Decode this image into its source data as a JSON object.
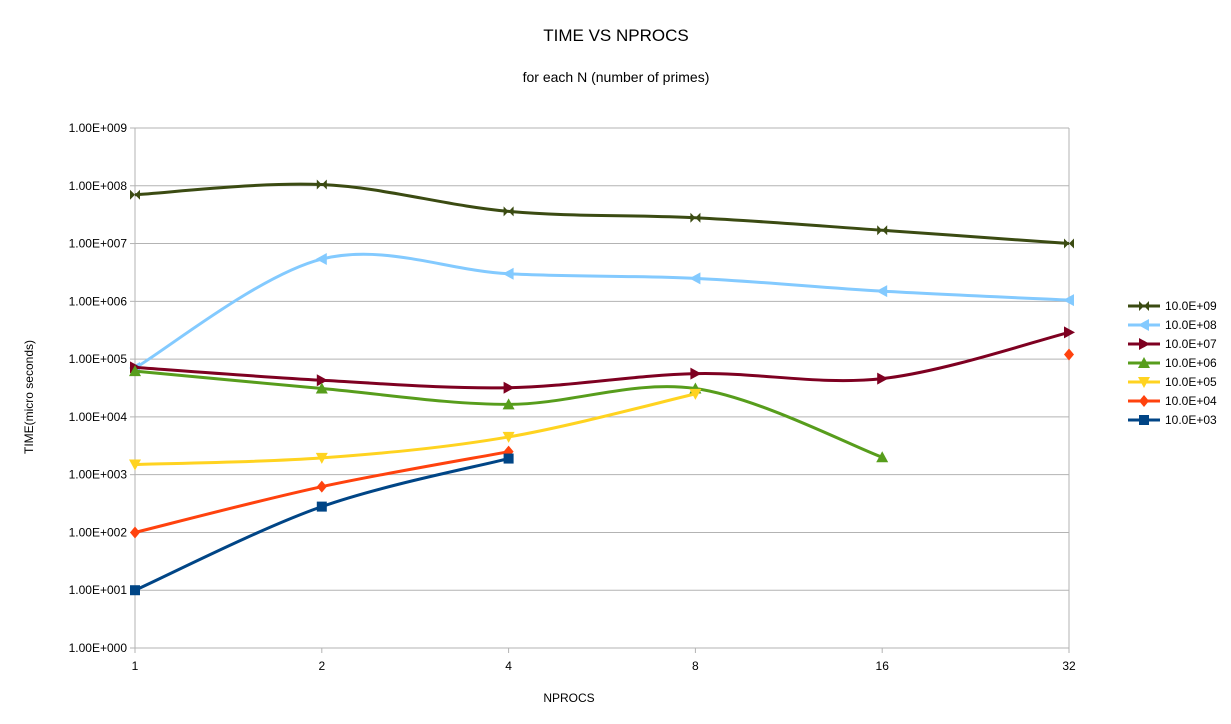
{
  "chart_data": {
    "type": "line",
    "title": "TIME VS NPROCS",
    "subtitle": "for each N (number of primes)",
    "xlabel": "NPROCS",
    "ylabel": "TIME(micro seconds)",
    "x_scale": "log2",
    "y_scale": "log10",
    "xlim": [
      1,
      32
    ],
    "ylim": [
      1,
      1000000000
    ],
    "x_ticks": [
      "1",
      "2",
      "4",
      "8",
      "16",
      "32"
    ],
    "y_ticks": [
      "1.00E+000",
      "1.00E+001",
      "1.00E+002",
      "1.00E+003",
      "1.00E+004",
      "1.00E+005",
      "1.00E+006",
      "1.00E+007",
      "1.00E+008",
      "1.00E+009"
    ],
    "grid": true,
    "legend_position": "right",
    "smoothed": true,
    "series": [
      {
        "name": "10.0E+09",
        "color": "#3b4b12",
        "marker": "bowtie",
        "points": [
          [
            1,
            70000000
          ],
          [
            2,
            105000000
          ],
          [
            4,
            36000000
          ],
          [
            8,
            28000000
          ],
          [
            16,
            17000000
          ],
          [
            32,
            10000000
          ]
        ]
      },
      {
        "name": "10.0E+08",
        "color": "#83caff",
        "marker": "triangle-left",
        "points": [
          [
            1,
            70000
          ],
          [
            2,
            5400000
          ],
          [
            4,
            3000000
          ],
          [
            8,
            2500000
          ],
          [
            16,
            1500000
          ],
          [
            32,
            1050000
          ]
        ]
      },
      {
        "name": "10.0E+07",
        "color": "#7e0021",
        "marker": "triangle-right",
        "points": [
          [
            1,
            72000
          ],
          [
            2,
            43000
          ],
          [
            4,
            32000
          ],
          [
            8,
            56000
          ],
          [
            16,
            46000
          ],
          [
            32,
            290000
          ]
        ]
      },
      {
        "name": "10.0E+06",
        "color": "#579d1c",
        "marker": "triangle-up",
        "points": [
          [
            1,
            62000
          ],
          [
            2,
            31000
          ],
          [
            4,
            16500
          ],
          [
            8,
            31000
          ],
          [
            16,
            2000
          ]
        ]
      },
      {
        "name": "10.0E+05",
        "color": "#ffd320",
        "marker": "triangle-down",
        "points": [
          [
            1,
            1500
          ],
          [
            2,
            1950
          ],
          [
            4,
            4500
          ],
          [
            8,
            25000
          ]
        ]
      },
      {
        "name": "10.0E+04",
        "color": "#ff420e",
        "marker": "diamond",
        "points": [
          [
            1,
            100
          ],
          [
            2,
            620
          ],
          [
            4,
            2500
          ],
          [
            32,
            120000
          ]
        ],
        "connected_through_index": 2
      },
      {
        "name": "10.0E+03",
        "color": "#004586",
        "marker": "square",
        "points": [
          [
            1,
            10
          ],
          [
            2,
            280
          ],
          [
            4,
            1900
          ]
        ]
      }
    ]
  }
}
